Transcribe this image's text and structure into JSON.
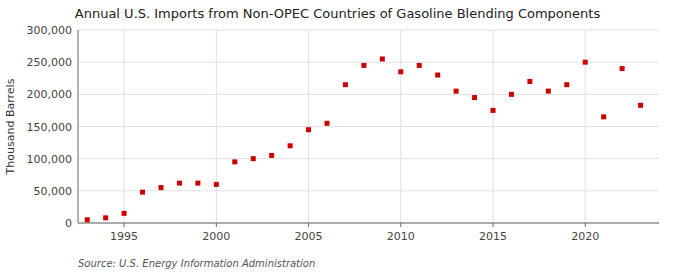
{
  "chart_data": {
    "type": "scatter",
    "title": "Annual U.S. Imports from Non-OPEC Countries of Gasoline Blending Components",
    "ylabel": "Thousand Barrels",
    "source": "Source: U.S. Energy Information Administration",
    "color": "#cc0000",
    "marker": "square",
    "grid": true,
    "x": [
      1993,
      1994,
      1995,
      1996,
      1997,
      1998,
      1999,
      2000,
      2001,
      2002,
      2003,
      2004,
      2005,
      2006,
      2007,
      2008,
      2009,
      2010,
      2011,
      2012,
      2013,
      2014,
      2015,
      2016,
      2017,
      2018,
      2019,
      2020,
      2021,
      2022,
      2023
    ],
    "values": [
      5000,
      8000,
      15000,
      48000,
      55000,
      62000,
      62000,
      60000,
      95000,
      100000,
      105000,
      120000,
      145000,
      155000,
      215000,
      245000,
      255000,
      235000,
      245000,
      230000,
      205000,
      195000,
      175000,
      200000,
      220000,
      205000,
      215000,
      250000,
      165000,
      240000,
      183000
    ],
    "xlim": [
      1992.5,
      2024
    ],
    "xticks": [
      1995,
      2000,
      2005,
      2010,
      2015,
      2020
    ],
    "ylim": [
      0,
      300000
    ],
    "yticks": [
      0,
      {
        "value": 50000,
        "label": "50,000"
      },
      {
        "value": 100000,
        "label": "100,000"
      },
      {
        "value": 150000,
        "label": "150,000"
      },
      {
        "value": 200000,
        "label": "200,000"
      },
      {
        "value": 250000,
        "label": "250,000"
      },
      {
        "value": 300000,
        "label": "300,000"
      }
    ]
  }
}
